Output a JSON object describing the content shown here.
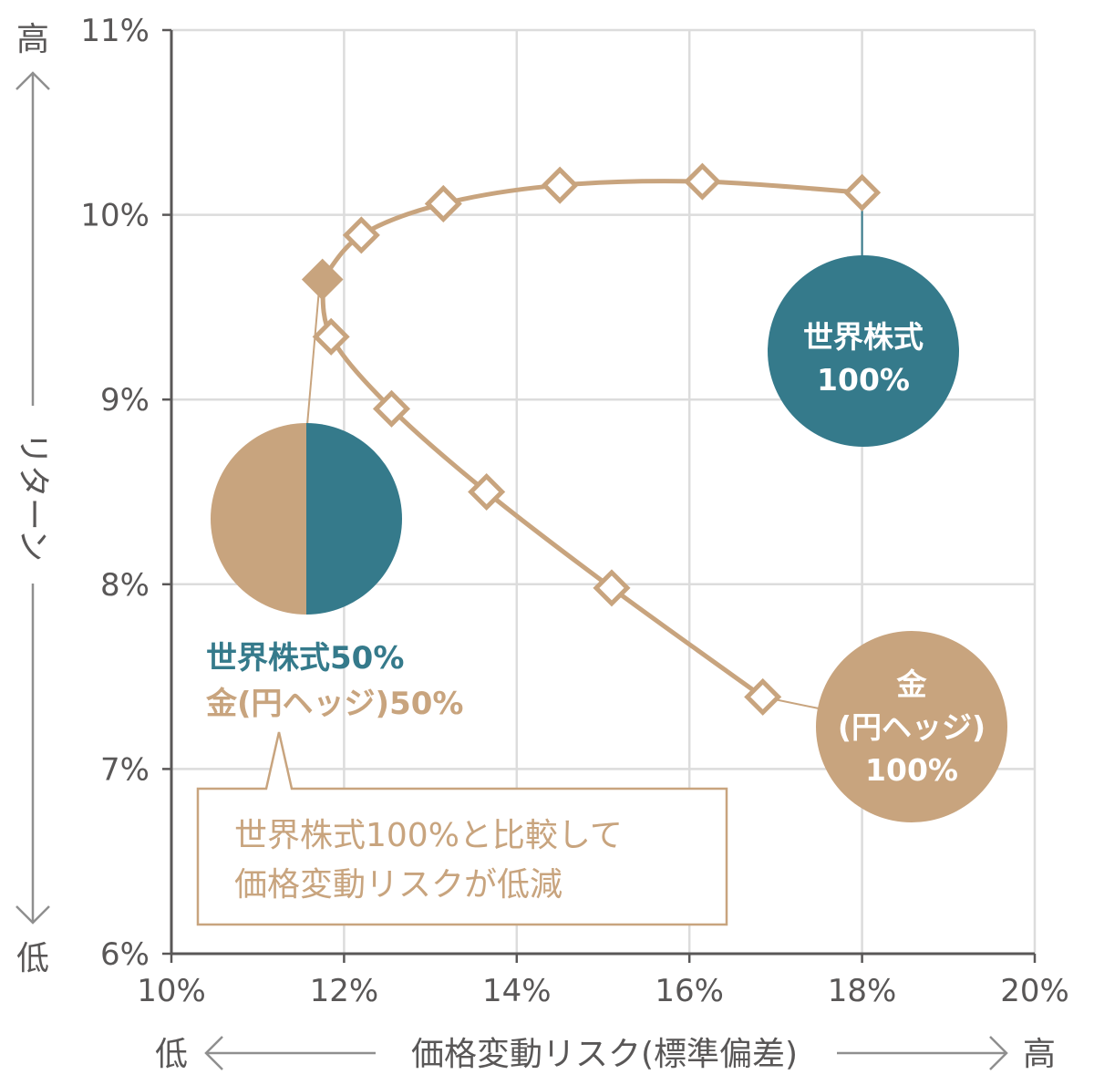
{
  "colors": {
    "gold": "#c8a47e",
    "teal": "#357a8b",
    "grid": "#dcdcdc",
    "axis": "#595757",
    "arrow": "#8f8f8f"
  },
  "chart_data": {
    "type": "scatter",
    "xlim": [
      10,
      20
    ],
    "ylim": [
      6,
      11
    ],
    "x_ticks": [
      "10%",
      "12%",
      "14%",
      "16%",
      "18%",
      "20%"
    ],
    "y_ticks": [
      "6%",
      "7%",
      "8%",
      "9%",
      "10%",
      "11%"
    ],
    "grid": true,
    "series": [
      {
        "points": [
          {
            "x": 11.75,
            "y": 9.65
          },
          {
            "x": 12.2,
            "y": 9.89
          },
          {
            "x": 13.15,
            "y": 10.06
          },
          {
            "x": 14.5,
            "y": 10.16
          },
          {
            "x": 16.15,
            "y": 10.18
          },
          {
            "x": 18.0,
            "y": 10.12
          }
        ]
      },
      {
        "points": [
          {
            "x": 11.75,
            "y": 9.65
          },
          {
            "x": 11.85,
            "y": 9.34
          },
          {
            "x": 12.55,
            "y": 8.95
          },
          {
            "x": 13.65,
            "y": 8.5
          },
          {
            "x": 15.1,
            "y": 7.98
          },
          {
            "x": 16.85,
            "y": 7.39
          }
        ]
      }
    ],
    "highlight_point": {
      "x": 11.75,
      "y": 9.65
    },
    "x_axis": {
      "low": "低",
      "label": "価格変動リスク(標準偏差)",
      "high": "高"
    },
    "y_axis": {
      "high": "高",
      "label": "リターン",
      "low": "低"
    },
    "annotations": {
      "stock_bubble": {
        "line1": "世界株式",
        "line2": "100%"
      },
      "gold_bubble": {
        "line1": "金",
        "line2": "(円ヘッジ)",
        "line3": "100%"
      },
      "mix_legend": {
        "stock": "世界株式50%",
        "gold": "金(円ヘッジ)50%"
      },
      "callout": {
        "line1": "世界株式100%と比較して",
        "line2": "価格変動リスクが低減"
      }
    }
  }
}
